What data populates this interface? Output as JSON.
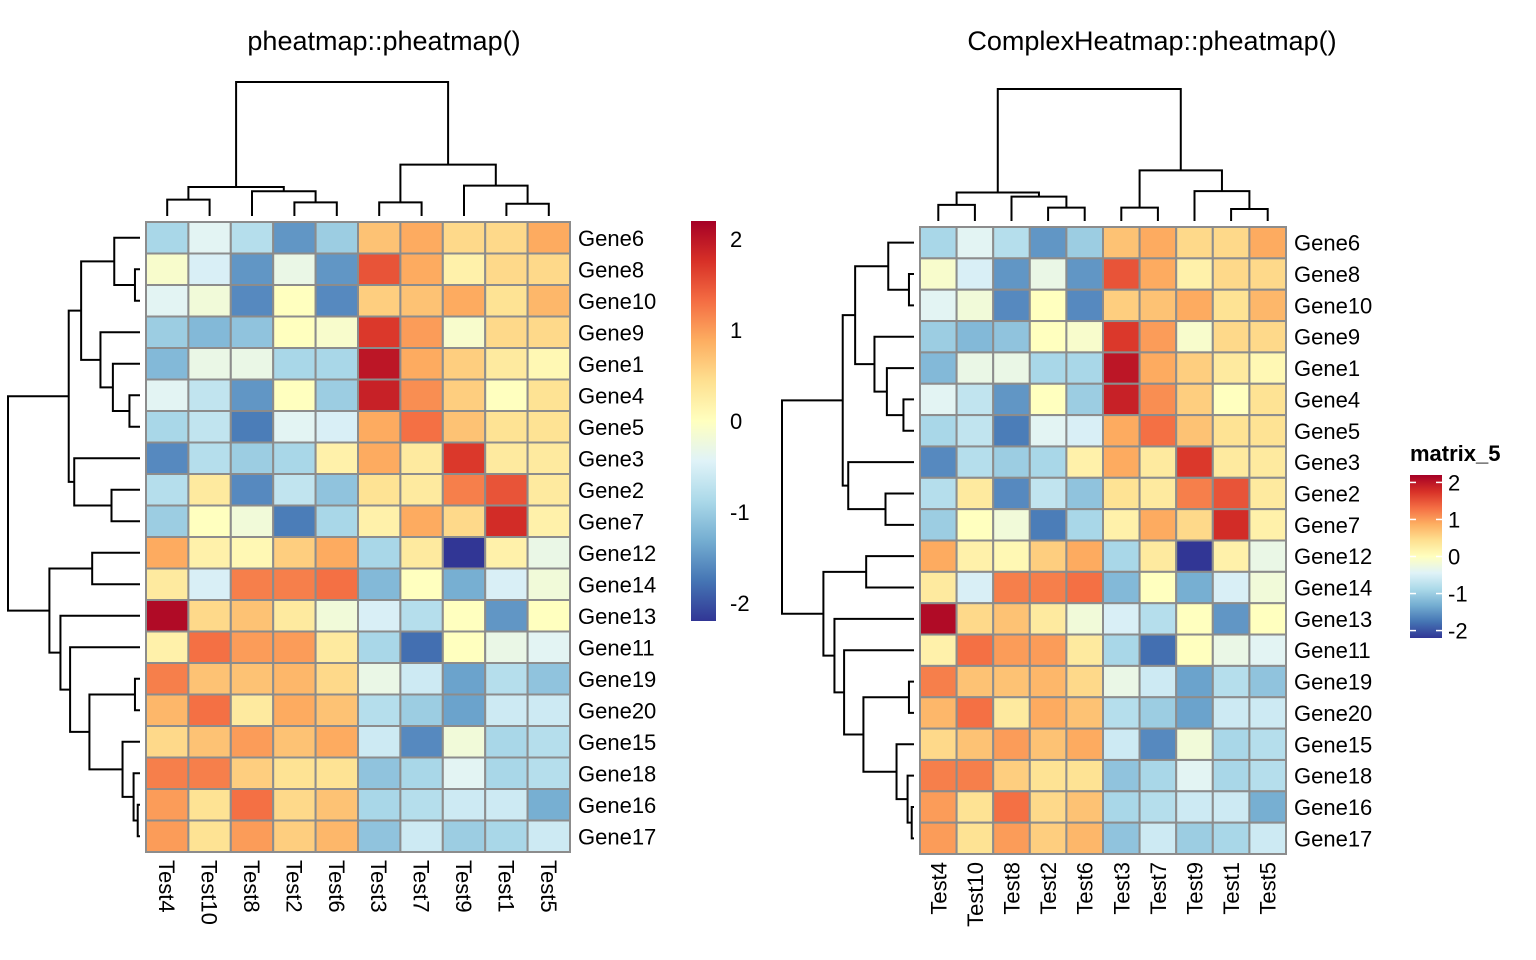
{
  "chart_data": [
    {
      "type": "heatmap",
      "title": "pheatmap::pheatmap()",
      "rows": [
        "Gene6",
        "Gene8",
        "Gene10",
        "Gene9",
        "Gene1",
        "Gene4",
        "Gene5",
        "Gene3",
        "Gene2",
        "Gene7",
        "Gene12",
        "Gene14",
        "Gene13",
        "Gene11",
        "Gene19",
        "Gene20",
        "Gene15",
        "Gene18",
        "Gene16",
        "Gene17"
      ],
      "columns": [
        "Test4",
        "Test10",
        "Test8",
        "Test2",
        "Test6",
        "Test3",
        "Test7",
        "Test9",
        "Test1",
        "Test5"
      ],
      "values": [
        [
          -0.9,
          -0.4,
          -0.8,
          -1.5,
          -1.0,
          0.7,
          0.9,
          0.5,
          0.5,
          0.9
        ],
        [
          -0.1,
          -0.5,
          -1.5,
          -0.3,
          -1.5,
          1.5,
          0.9,
          0.2,
          0.5,
          0.5
        ],
        [
          -0.4,
          -0.2,
          -1.6,
          0.0,
          -1.6,
          0.6,
          0.7,
          0.9,
          0.4,
          0.8
        ],
        [
          -1.0,
          -1.2,
          -1.1,
          0.0,
          -0.1,
          1.7,
          1.0,
          -0.1,
          0.5,
          0.5
        ],
        [
          -1.2,
          -0.3,
          -0.3,
          -0.9,
          -0.9,
          2.0,
          0.9,
          0.6,
          0.3,
          0.1
        ],
        [
          -0.4,
          -0.7,
          -1.5,
          0.0,
          -1.0,
          1.9,
          1.1,
          0.6,
          0.0,
          0.4
        ],
        [
          -0.9,
          -0.7,
          -1.7,
          -0.4,
          -0.5,
          0.9,
          1.3,
          0.7,
          0.4,
          0.4
        ],
        [
          -1.6,
          -0.8,
          -1.0,
          -0.9,
          0.2,
          0.9,
          0.3,
          1.7,
          0.3,
          0.3
        ],
        [
          -0.8,
          0.3,
          -1.6,
          -0.7,
          -1.1,
          0.4,
          0.3,
          1.2,
          1.5,
          0.3
        ],
        [
          -1.0,
          0.0,
          -0.2,
          -1.7,
          -0.9,
          0.2,
          0.9,
          0.5,
          1.8,
          0.2
        ],
        [
          0.9,
          0.2,
          0.1,
          0.6,
          0.9,
          -0.9,
          0.3,
          -2.2,
          0.2,
          -0.3
        ],
        [
          0.3,
          -0.5,
          1.2,
          1.2,
          1.3,
          -1.2,
          0.0,
          -1.3,
          -0.5,
          -0.2
        ],
        [
          2.1,
          0.5,
          0.7,
          0.3,
          -0.2,
          -0.5,
          -0.8,
          0.0,
          -1.5,
          0.0
        ],
        [
          0.2,
          1.3,
          1.0,
          1.0,
          0.3,
          -0.9,
          -1.8,
          0.0,
          -0.3,
          -0.4
        ],
        [
          1.2,
          0.7,
          0.7,
          0.8,
          0.5,
          -0.3,
          -0.6,
          -1.4,
          -0.8,
          -1.1
        ],
        [
          0.8,
          1.3,
          0.3,
          0.9,
          0.7,
          -0.8,
          -1.0,
          -1.4,
          -0.6,
          -0.6
        ],
        [
          0.5,
          0.7,
          1.0,
          0.7,
          0.9,
          -0.6,
          -1.6,
          -0.2,
          -0.9,
          -0.8
        ],
        [
          1.2,
          1.2,
          0.6,
          0.4,
          0.4,
          -1.1,
          -0.9,
          -0.4,
          -0.9,
          -0.8
        ],
        [
          1.0,
          0.4,
          1.3,
          0.5,
          0.7,
          -0.9,
          -0.8,
          -0.6,
          -0.6,
          -1.3
        ],
        [
          1.0,
          0.4,
          1.0,
          0.6,
          0.8,
          -1.1,
          -0.6,
          -1.0,
          -0.9,
          -0.6
        ]
      ],
      "colorbar": {
        "ticks": [
          2,
          1,
          0,
          -1,
          -2
        ],
        "range": [
          -2.2,
          2.2
        ],
        "title": ""
      },
      "palette": [
        "#313695",
        "#4575B4",
        "#74ADD1",
        "#ABD9E9",
        "#E0F3F8",
        "#FFFFBF",
        "#FEE090",
        "#FDAE61",
        "#F46D43",
        "#D73027",
        "#A50026"
      ]
    },
    {
      "type": "heatmap",
      "title": "ComplexHeatmap::pheatmap()",
      "rows": [
        "Gene6",
        "Gene8",
        "Gene10",
        "Gene9",
        "Gene1",
        "Gene4",
        "Gene5",
        "Gene3",
        "Gene2",
        "Gene7",
        "Gene12",
        "Gene14",
        "Gene13",
        "Gene11",
        "Gene19",
        "Gene20",
        "Gene15",
        "Gene18",
        "Gene16",
        "Gene17"
      ],
      "columns": [
        "Test4",
        "Test10",
        "Test8",
        "Test2",
        "Test6",
        "Test3",
        "Test7",
        "Test9",
        "Test1",
        "Test5"
      ],
      "values_ref": "same matrix as pheatmap::pheatmap()",
      "colorbar": {
        "ticks": [
          2,
          1,
          0,
          -1,
          -2
        ],
        "range": [
          -2.2,
          2.2
        ],
        "title": "matrix_5"
      }
    }
  ]
}
